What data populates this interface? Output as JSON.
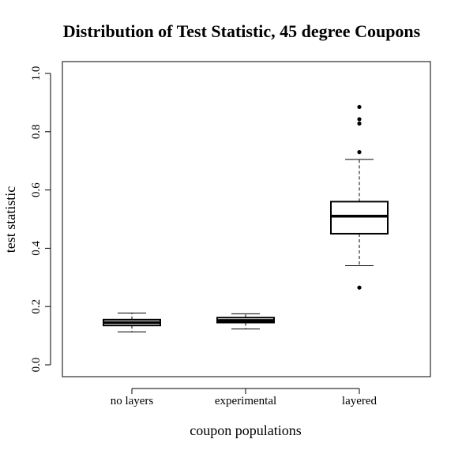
{
  "chart_data": {
    "type": "boxplot",
    "title": "Distribution of Test Statistic, 45 degree Coupons",
    "xlabel": "coupon populations",
    "ylabel": "test statistic",
    "ylim": [
      0.0,
      1.0
    ],
    "yticks": [
      0.0,
      0.2,
      0.4,
      0.6,
      0.8,
      1.0
    ],
    "ytick_labels": [
      "0.0",
      "0.2",
      "0.4",
      "0.6",
      "0.8",
      "1.0"
    ],
    "categories": [
      "no layers",
      "experimental",
      "layered"
    ],
    "boxes": [
      {
        "category": "no layers",
        "whisker_low": 0.113,
        "q1": 0.135,
        "median": 0.145,
        "q3": 0.155,
        "whisker_high": 0.178,
        "outliers": []
      },
      {
        "category": "experimental",
        "whisker_low": 0.123,
        "q1": 0.145,
        "median": 0.152,
        "q3": 0.162,
        "whisker_high": 0.175,
        "outliers": []
      },
      {
        "category": "layered",
        "whisker_low": 0.34,
        "q1": 0.45,
        "median": 0.51,
        "q3": 0.56,
        "whisker_high": 0.705,
        "outliers": [
          0.265,
          0.73,
          0.828,
          0.843,
          0.885
        ]
      }
    ],
    "grid": false,
    "legend": "none",
    "colors": {
      "box_stroke": "#000000",
      "background": "#ffffff"
    }
  }
}
